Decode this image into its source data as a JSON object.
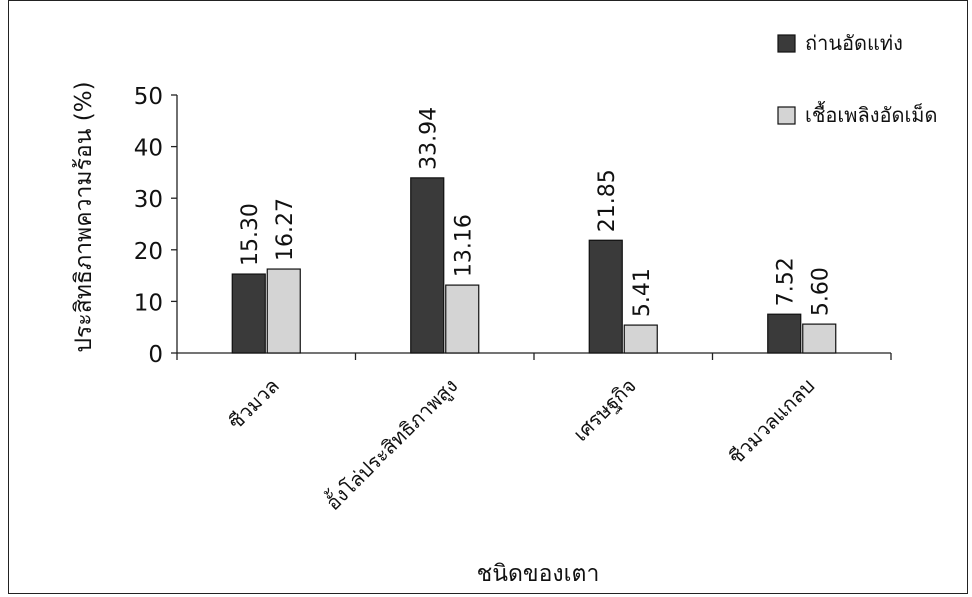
{
  "chart_data": {
    "type": "bar",
    "title": "",
    "xlabel": "ชนิดของเตา",
    "ylabel": "ประสิทธิภาพความร้อน (%)",
    "ylim": [
      0,
      50
    ],
    "yticks": [
      0,
      10,
      20,
      30,
      40,
      50
    ],
    "grid": false,
    "legend_position": "top-right",
    "categories": [
      "ซีวมวล",
      "อั้งโล่ประสิทธิภาพสูง",
      "เศรษฐกิจ",
      "ชีวมวลแกลบ"
    ],
    "series": [
      {
        "name": "ถ่านอัดแท่ง",
        "color": "#3a3a3a",
        "values": [
          15.3,
          33.94,
          21.85,
          7.52
        ],
        "labels": [
          "15.30",
          "33.94",
          "21.85",
          "7.52"
        ]
      },
      {
        "name": "เชื้อเพลิงอัดเม็ด",
        "color": "#d4d4d4",
        "values": [
          16.27,
          13.16,
          5.41,
          5.6
        ],
        "labels": [
          "16.27",
          "13.16",
          "5.41",
          "5.60"
        ]
      }
    ]
  }
}
